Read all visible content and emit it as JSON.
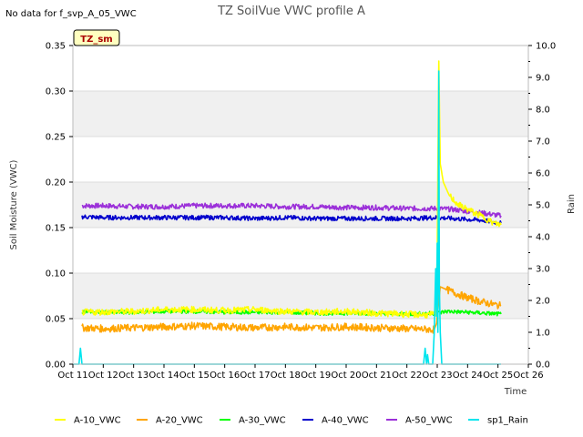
{
  "chart_data": {
    "type": "line",
    "title": "TZ SoilVue VWC profile A",
    "note": "No data for f_svp_A_05_VWC",
    "site_badge": "TZ_sm",
    "xlabel": "Time",
    "ylabel": "Soil Moisture (VWC)",
    "y2label": "Rain",
    "x_ticks": [
      "Oct 11",
      "Oct 12",
      "Oct 13",
      "Oct 14",
      "Oct 15",
      "Oct 16",
      "Oct 17",
      "Oct 18",
      "Oct 19",
      "Oct 20",
      "Oct 21",
      "Oct 22",
      "Oct 23",
      "Oct 24",
      "Oct 25",
      "Oct 26"
    ],
    "x_range_days": [
      11,
      26
    ],
    "y_ticks": [
      "0.00",
      "0.05",
      "0.10",
      "0.15",
      "0.20",
      "0.25",
      "0.30",
      "0.35"
    ],
    "ylim": [
      0,
      0.35
    ],
    "y2_ticks": [
      "0.0",
      "1.0",
      "2.0",
      "3.0",
      "4.0",
      "5.0",
      "6.0",
      "7.0",
      "8.0",
      "9.0",
      "10.0"
    ],
    "y2lim": [
      0,
      10
    ],
    "series": [
      {
        "name": "A-10_VWC",
        "color": "#ffff00",
        "axis": "left",
        "points": [
          [
            11.3,
            0.057
          ],
          [
            13,
            0.058
          ],
          [
            14,
            0.06
          ],
          [
            15,
            0.06
          ],
          [
            16,
            0.059
          ],
          [
            17,
            0.06
          ],
          [
            18,
            0.058
          ],
          [
            19,
            0.057
          ],
          [
            20,
            0.058
          ],
          [
            21,
            0.056
          ],
          [
            22,
            0.055
          ],
          [
            22.7,
            0.054
          ],
          [
            22.95,
            0.055
          ],
          [
            23.0,
            0.12
          ],
          [
            23.05,
            0.333
          ],
          [
            23.1,
            0.22
          ],
          [
            23.2,
            0.2
          ],
          [
            23.4,
            0.185
          ],
          [
            23.7,
            0.175
          ],
          [
            24.0,
            0.17
          ],
          [
            24.3,
            0.165
          ],
          [
            24.6,
            0.16
          ],
          [
            24.85,
            0.155
          ],
          [
            25.1,
            0.153
          ]
        ]
      },
      {
        "name": "A-20_VWC",
        "color": "#ffa500",
        "axis": "left",
        "points": [
          [
            11.3,
            0.04
          ],
          [
            12,
            0.039
          ],
          [
            13,
            0.04
          ],
          [
            14,
            0.041
          ],
          [
            15,
            0.042
          ],
          [
            16,
            0.041
          ],
          [
            17,
            0.04
          ],
          [
            18,
            0.041
          ],
          [
            19,
            0.04
          ],
          [
            20,
            0.041
          ],
          [
            21,
            0.04
          ],
          [
            22,
            0.039
          ],
          [
            22.9,
            0.038
          ],
          [
            22.98,
            0.045
          ],
          [
            23.05,
            0.07
          ],
          [
            23.1,
            0.085
          ],
          [
            23.3,
            0.082
          ],
          [
            23.6,
            0.078
          ],
          [
            24.0,
            0.073
          ],
          [
            24.4,
            0.069
          ],
          [
            24.8,
            0.066
          ],
          [
            25.1,
            0.064
          ]
        ]
      },
      {
        "name": "A-30_VWC",
        "color": "#00ff00",
        "axis": "left",
        "points": [
          [
            11.3,
            0.058
          ],
          [
            12,
            0.057
          ],
          [
            13,
            0.057
          ],
          [
            14,
            0.058
          ],
          [
            15,
            0.058
          ],
          [
            16,
            0.057
          ],
          [
            17,
            0.057
          ],
          [
            18,
            0.057
          ],
          [
            19,
            0.056
          ],
          [
            20,
            0.056
          ],
          [
            21,
            0.056
          ],
          [
            22,
            0.055
          ],
          [
            23,
            0.056
          ],
          [
            23.3,
            0.058
          ],
          [
            24,
            0.057
          ],
          [
            25.1,
            0.055
          ]
        ]
      },
      {
        "name": "A-40_VWC",
        "color": "#0000cc",
        "axis": "left",
        "points": [
          [
            11.3,
            0.162
          ],
          [
            12,
            0.161
          ],
          [
            13,
            0.161
          ],
          [
            14,
            0.161
          ],
          [
            15,
            0.161
          ],
          [
            16,
            0.161
          ],
          [
            17,
            0.16
          ],
          [
            18,
            0.161
          ],
          [
            19,
            0.16
          ],
          [
            20,
            0.16
          ],
          [
            21,
            0.16
          ],
          [
            22,
            0.16
          ],
          [
            23,
            0.161
          ],
          [
            23.5,
            0.16
          ],
          [
            24,
            0.159
          ],
          [
            24.5,
            0.158
          ],
          [
            25.1,
            0.155
          ]
        ]
      },
      {
        "name": "A-50_VWC",
        "color": "#9b30d9",
        "axis": "left",
        "points": [
          [
            11.3,
            0.174
          ],
          [
            12,
            0.174
          ],
          [
            13,
            0.173
          ],
          [
            14,
            0.173
          ],
          [
            15,
            0.174
          ],
          [
            16,
            0.174
          ],
          [
            17,
            0.174
          ],
          [
            18,
            0.173
          ],
          [
            19,
            0.173
          ],
          [
            20,
            0.172
          ],
          [
            21,
            0.172
          ],
          [
            22,
            0.171
          ],
          [
            23,
            0.171
          ],
          [
            23.5,
            0.17
          ],
          [
            24,
            0.168
          ],
          [
            24.5,
            0.166
          ],
          [
            25.1,
            0.163
          ]
        ]
      },
      {
        "name": "sp1_Rain",
        "color": "#00e5ee",
        "axis": "right",
        "points": [
          [
            11.0,
            0
          ],
          [
            11.2,
            0
          ],
          [
            11.25,
            0.5
          ],
          [
            11.3,
            0
          ],
          [
            22.55,
            0
          ],
          [
            22.6,
            0.5
          ],
          [
            22.65,
            0
          ],
          [
            22.68,
            0.3
          ],
          [
            22.72,
            0
          ],
          [
            22.85,
            0
          ],
          [
            22.9,
            1.0
          ],
          [
            22.95,
            3.0
          ],
          [
            22.98,
            1.5
          ],
          [
            23.0,
            3.8
          ],
          [
            23.02,
            1.0
          ],
          [
            23.05,
            9.2
          ],
          [
            23.07,
            2.5
          ],
          [
            23.1,
            1.0
          ],
          [
            23.15,
            0
          ],
          [
            25.1,
            0
          ]
        ]
      }
    ]
  }
}
